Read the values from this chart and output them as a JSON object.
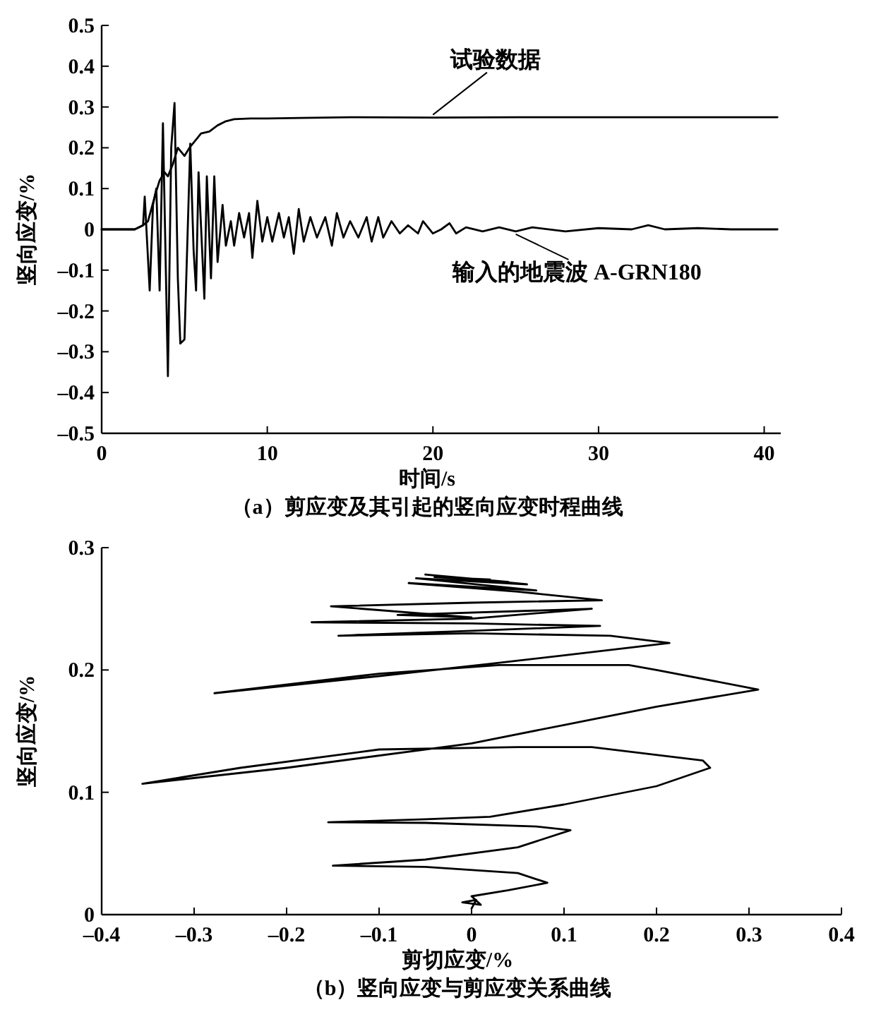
{
  "chart_data": [
    {
      "type": "line",
      "title": "（a）剪应变及其引起的竖向应变时程曲线",
      "xlabel": "时间/s",
      "ylabel": "竖向应变/%",
      "xlim": [
        0,
        41
      ],
      "ylim": [
        -0.5,
        0.5
      ],
      "xticks": [
        0,
        10,
        20,
        30,
        40
      ],
      "yticks": [
        {
          "value": -0.5,
          "label": "–0.5"
        },
        {
          "value": -0.4,
          "label": "–0.4"
        },
        {
          "value": -0.3,
          "label": "–0.3"
        },
        {
          "value": -0.2,
          "label": "–0.2"
        },
        {
          "value": -0.1,
          "label": "–0.1"
        },
        0,
        0.1,
        0.2,
        0.3,
        0.4,
        0.5
      ],
      "line_style": "solid",
      "series": [
        {
          "name": "试验数据",
          "color": "#000000",
          "x": [
            0,
            2,
            2.5,
            2.8,
            3.2,
            3.5,
            3.8,
            4.0,
            4.3,
            4.6,
            4.8,
            5.0,
            5.3,
            5.7,
            6.0,
            6.5,
            7.0,
            7.5,
            8.0,
            9.0,
            10,
            12,
            15,
            20,
            25,
            30,
            35,
            40.8
          ],
          "values": [
            0,
            0,
            0.01,
            0.02,
            0.08,
            0.12,
            0.14,
            0.13,
            0.16,
            0.2,
            0.19,
            0.18,
            0.2,
            0.22,
            0.235,
            0.24,
            0.255,
            0.265,
            0.27,
            0.272,
            0.272,
            0.273,
            0.275,
            0.274,
            0.275,
            0.275,
            0.275,
            0.275
          ]
        },
        {
          "name": "输入的地震波 A-GRN180",
          "color": "#000000",
          "x": [
            0,
            2.0,
            2.5,
            2.6,
            2.9,
            3.1,
            3.3,
            3.5,
            3.7,
            3.9,
            4.0,
            4.2,
            4.4,
            4.6,
            4.75,
            5.0,
            5.35,
            5.55,
            5.7,
            5.85,
            6.2,
            6.35,
            6.6,
            6.8,
            7.0,
            7.3,
            7.5,
            7.8,
            8.0,
            8.3,
            8.6,
            8.9,
            9.1,
            9.4,
            9.7,
            10.0,
            10.3,
            10.7,
            11.0,
            11.3,
            11.6,
            11.9,
            12.2,
            12.6,
            13.0,
            13.5,
            13.9,
            14.2,
            14.6,
            15.0,
            15.5,
            16.0,
            16.3,
            16.7,
            17.0,
            17.5,
            18.0,
            18.5,
            19.1,
            19.4,
            20.0,
            20.5,
            21.0,
            21.4,
            22,
            23,
            24,
            25,
            26,
            28,
            30,
            32,
            33,
            34,
            36,
            38,
            40.8
          ],
          "values": [
            0,
            0,
            0.01,
            0.08,
            -0.15,
            0.06,
            0.1,
            -0.15,
            0.26,
            -0.15,
            -0.36,
            0.2,
            0.31,
            -0.12,
            -0.28,
            -0.27,
            0.21,
            -0.05,
            -0.15,
            0.14,
            -0.17,
            0.13,
            -0.12,
            0.13,
            -0.08,
            0.06,
            -0.04,
            0.02,
            -0.04,
            0.04,
            -0.02,
            0.04,
            -0.07,
            0.07,
            -0.03,
            0.03,
            -0.03,
            0.04,
            -0.02,
            0.03,
            -0.06,
            0.05,
            -0.03,
            0.03,
            -0.02,
            0.03,
            -0.04,
            0.04,
            -0.02,
            0.02,
            -0.02,
            0.03,
            -0.03,
            0.03,
            -0.02,
            0.02,
            -0.01,
            0.01,
            -0.01,
            0.02,
            -0.01,
            0,
            0.015,
            -0.01,
            0.005,
            -0.005,
            0.005,
            -0.005,
            0.005,
            -0.005,
            0.003,
            0,
            0.01,
            0,
            0.003,
            0,
            0
          ]
        }
      ]
    },
    {
      "type": "line",
      "title": "（b）竖向应变与剪应变关系曲线",
      "xlabel": "剪切应变/%",
      "ylabel": "竖向应变/%",
      "xlim": [
        -0.4,
        0.4
      ],
      "ylim": [
        0,
        0.3
      ],
      "xticks": [
        {
          "value": -0.4,
          "label": "–0.4"
        },
        {
          "value": -0.3,
          "label": "–0.3"
        },
        {
          "value": -0.2,
          "label": "–0.2"
        },
        {
          "value": -0.1,
          "label": "–0.1"
        },
        0,
        0.1,
        0.2,
        0.3,
        0.4
      ],
      "yticks": [
        0,
        0.1,
        0.2,
        0.3
      ],
      "line_style": "solid",
      "series": [
        {
          "color": "#000000",
          "x": [
            0,
            0.005,
            -0.01,
            0.01,
            0.0,
            0.04,
            0.082,
            0.05,
            -0.05,
            -0.15,
            -0.05,
            0.05,
            0.107,
            0.07,
            -0.05,
            -0.155,
            -0.05,
            0.02,
            0.1,
            0.2,
            0.258,
            0.25,
            0.13,
            0.05,
            -0.1,
            -0.25,
            -0.356,
            -0.2,
            0.0,
            0.1,
            0.2,
            0.31,
            0.2,
            0.17,
            0.03,
            -0.1,
            -0.278,
            -0.1,
            0.02,
            0.1,
            0.214,
            0.15,
            0.0,
            -0.144,
            0.0,
            0.139,
            0.0,
            -0.173,
            0.0,
            0.13,
            -0.08,
            0.0,
            -0.152,
            0.0,
            0.141,
            0.05,
            -0.068,
            0.07,
            -0.06,
            0.06,
            -0.05,
            0.04,
            -0.04,
            0.02
          ],
          "values": [
            0.005,
            0.012,
            0.01,
            0.008,
            0.015,
            0.02,
            0.026,
            0.034,
            0.039,
            0.04,
            0.045,
            0.055,
            0.069,
            0.072,
            0.075,
            0.0755,
            0.078,
            0.08,
            0.09,
            0.105,
            0.12,
            0.126,
            0.137,
            0.137,
            0.135,
            0.12,
            0.107,
            0.12,
            0.14,
            0.155,
            0.17,
            0.184,
            0.2,
            0.204,
            0.204,
            0.197,
            0.181,
            0.195,
            0.205,
            0.212,
            0.222,
            0.228,
            0.23,
            0.228,
            0.232,
            0.236,
            0.238,
            0.239,
            0.242,
            0.25,
            0.245,
            0.243,
            0.252,
            0.255,
            0.257,
            0.264,
            0.271,
            0.265,
            0.275,
            0.27,
            0.278,
            0.272,
            0.276,
            0.274
          ]
        }
      ]
    }
  ]
}
